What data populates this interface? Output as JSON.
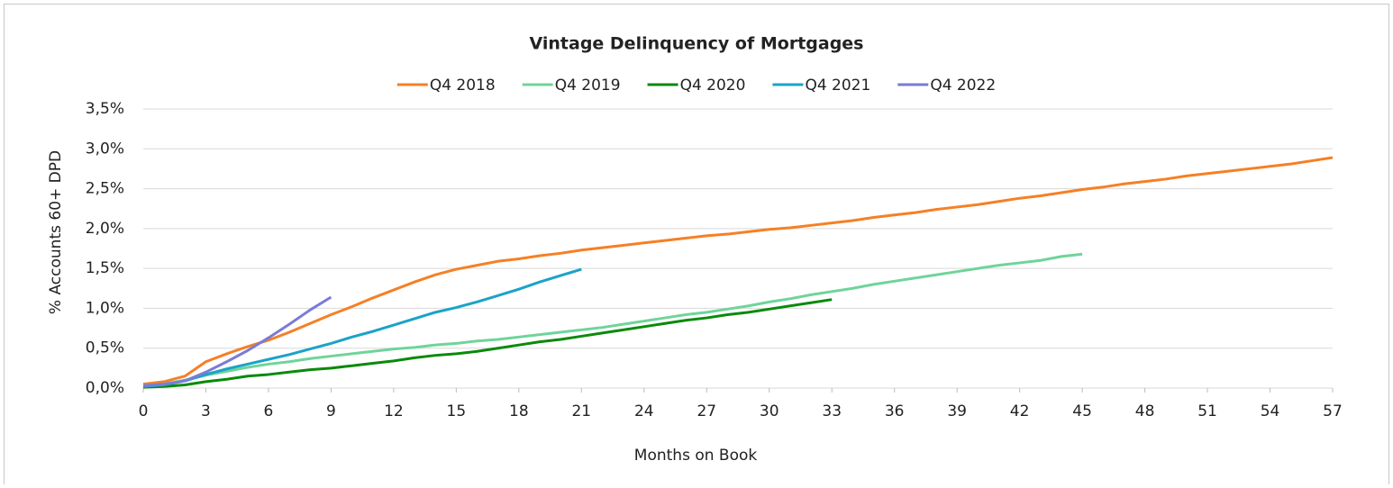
{
  "chart_data": {
    "type": "line",
    "title": "Vintage Delinquency of Mortgages",
    "x_label": "Months on Book",
    "y_label": "% Accounts 60+ DPD",
    "x": [
      0,
      1,
      2,
      3,
      4,
      5,
      6,
      7,
      8,
      9,
      10,
      11,
      12,
      13,
      14,
      15,
      16,
      17,
      18,
      19,
      20,
      21,
      22,
      23,
      24,
      25,
      26,
      27,
      28,
      29,
      30,
      31,
      32,
      33,
      34,
      35,
      36,
      37,
      38,
      39,
      40,
      41,
      42,
      43,
      44,
      45,
      46,
      47,
      48,
      49,
      50,
      51,
      52,
      53,
      54,
      55,
      56,
      57
    ],
    "xlim": [
      0,
      57
    ],
    "xticks": [
      0,
      3,
      6,
      9,
      12,
      15,
      18,
      21,
      24,
      27,
      30,
      33,
      36,
      39,
      42,
      45,
      48,
      51,
      54,
      57
    ],
    "ylim": [
      0,
      3.5
    ],
    "yticks": [
      {
        "value": 0,
        "label": "0,0%"
      },
      {
        "value": 0.5,
        "label": "0,5%"
      },
      {
        "value": 1,
        "label": "1,0%"
      },
      {
        "value": 1.5,
        "label": "1,5%"
      },
      {
        "value": 2,
        "label": "2,0%"
      },
      {
        "value": 2.5,
        "label": "2,5%"
      },
      {
        "value": 3,
        "label": "3,0%"
      },
      {
        "value": 3.5,
        "label": "3,5%"
      }
    ],
    "grid": true,
    "legend": "top",
    "series": [
      {
        "name": "Q4 2018",
        "color": "#f58025",
        "values": [
          0.05,
          0.08,
          0.15,
          0.33,
          0.43,
          0.52,
          0.6,
          0.7,
          0.81,
          0.92,
          1.02,
          1.13,
          1.23,
          1.33,
          1.42,
          1.49,
          1.54,
          1.59,
          1.62,
          1.66,
          1.69,
          1.73,
          1.76,
          1.79,
          1.82,
          1.85,
          1.88,
          1.91,
          1.93,
          1.96,
          1.99,
          2.01,
          2.04,
          2.07,
          2.1,
          2.14,
          2.17,
          2.2,
          2.24,
          2.27,
          2.3,
          2.34,
          2.38,
          2.41,
          2.45,
          2.49,
          2.52,
          2.56,
          2.59,
          2.62,
          2.66,
          2.69,
          2.72,
          2.75,
          2.78,
          2.81,
          2.85,
          2.89
        ]
      },
      {
        "name": "Q4 2019",
        "color": "#6fd49a",
        "values": [
          0.02,
          0.05,
          0.1,
          0.16,
          0.21,
          0.26,
          0.3,
          0.33,
          0.37,
          0.4,
          0.43,
          0.46,
          0.49,
          0.51,
          0.54,
          0.56,
          0.59,
          0.61,
          0.64,
          0.67,
          0.7,
          0.73,
          0.76,
          0.8,
          0.84,
          0.88,
          0.92,
          0.95,
          0.99,
          1.03,
          1.08,
          1.12,
          1.17,
          1.21,
          1.25,
          1.3,
          1.34,
          1.38,
          1.42,
          1.46,
          1.5,
          1.54,
          1.57,
          1.6,
          1.65,
          1.68,
          null,
          null,
          null,
          null,
          null,
          null,
          null,
          null,
          null,
          null,
          null,
          null
        ]
      },
      {
        "name": "Q4 2020",
        "color": "#0a8a0a",
        "values": [
          0.01,
          0.02,
          0.04,
          0.08,
          0.11,
          0.15,
          0.17,
          0.2,
          0.23,
          0.25,
          0.28,
          0.31,
          0.34,
          0.38,
          0.41,
          0.43,
          0.46,
          0.5,
          0.54,
          0.58,
          0.61,
          0.65,
          0.69,
          0.73,
          0.77,
          0.81,
          0.85,
          0.88,
          0.92,
          0.95,
          0.99,
          1.03,
          1.07,
          1.11,
          null,
          null,
          null,
          null,
          null,
          null,
          null,
          null,
          null,
          null,
          null,
          null,
          null,
          null,
          null,
          null,
          null,
          null,
          null,
          null,
          null,
          null,
          null,
          null
        ]
      },
      {
        "name": "Q4 2021",
        "color": "#1aa3c8",
        "values": [
          0.02,
          0.04,
          0.09,
          0.17,
          0.24,
          0.3,
          0.36,
          0.42,
          0.49,
          0.56,
          0.64,
          0.71,
          0.79,
          0.87,
          0.95,
          1.01,
          1.08,
          1.16,
          1.24,
          1.33,
          1.41,
          1.49,
          null,
          null,
          null,
          null,
          null,
          null,
          null,
          null,
          null,
          null,
          null,
          null,
          null,
          null,
          null,
          null,
          null,
          null,
          null,
          null,
          null,
          null,
          null,
          null,
          null,
          null,
          null,
          null,
          null,
          null,
          null,
          null,
          null,
          null,
          null,
          null
        ]
      },
      {
        "name": "Q4 2022",
        "color": "#7b7bd6",
        "values": [
          0.03,
          0.05,
          0.09,
          0.2,
          0.33,
          0.47,
          0.63,
          0.8,
          0.98,
          1.14,
          null,
          null,
          null,
          null,
          null,
          null,
          null,
          null,
          null,
          null,
          null,
          null,
          null,
          null,
          null,
          null,
          null,
          null,
          null,
          null,
          null,
          null,
          null,
          null,
          null,
          null,
          null,
          null,
          null,
          null,
          null,
          null,
          null,
          null,
          null,
          null,
          null,
          null,
          null,
          null,
          null,
          null,
          null,
          null,
          null,
          null,
          null,
          null
        ]
      }
    ]
  }
}
